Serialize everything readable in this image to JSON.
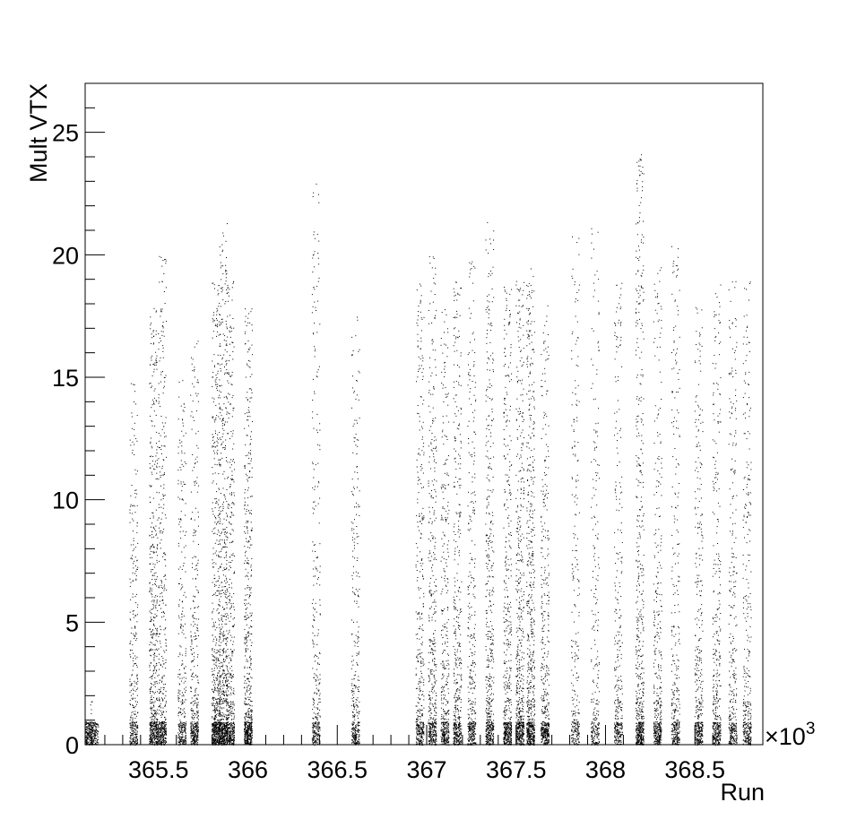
{
  "chart_data": {
    "type": "scatter",
    "title": "",
    "xlabel": "Run",
    "ylabel": "Mult VTX",
    "x_multiplier_label": "×10",
    "x_multiplier_exponent": "3",
    "xlim": [
      365.09,
      368.88
    ],
    "ylim": [
      0,
      27
    ],
    "x_ticks": [
      {
        "value": 365.5,
        "label": "365.5"
      },
      {
        "value": 366.0,
        "label": "366"
      },
      {
        "value": 366.5,
        "label": "366.5"
      },
      {
        "value": 367.0,
        "label": "367"
      },
      {
        "value": 367.5,
        "label": "367.5"
      },
      {
        "value": 368.0,
        "label": "368"
      },
      {
        "value": 368.5,
        "label": "368.5"
      }
    ],
    "y_ticks": [
      {
        "value": 0,
        "label": "0"
      },
      {
        "value": 5,
        "label": "5"
      },
      {
        "value": 10,
        "label": "10"
      },
      {
        "value": 15,
        "label": "15"
      },
      {
        "value": 20,
        "label": "20"
      },
      {
        "value": 25,
        "label": "25"
      }
    ],
    "grid": false,
    "marker_color": "#000000",
    "runs": [
      {
        "x": 365.11,
        "max": 1,
        "density": 0.3
      },
      {
        "x": 365.14,
        "max": 1,
        "density": 0.2
      },
      {
        "x": 365.36,
        "max": 14,
        "density": 0.5
      },
      {
        "x": 365.47,
        "max": 17,
        "density": 0.9
      },
      {
        "x": 365.52,
        "max": 19,
        "density": 0.7
      },
      {
        "x": 365.63,
        "max": 14,
        "density": 0.5
      },
      {
        "x": 365.7,
        "max": 16,
        "density": 0.6
      },
      {
        "x": 365.82,
        "max": 18,
        "density": 1.0
      },
      {
        "x": 365.86,
        "max": 20.5,
        "density": 1.0
      },
      {
        "x": 365.9,
        "max": 18,
        "density": 0.8
      },
      {
        "x": 366.0,
        "max": 17,
        "density": 0.9
      },
      {
        "x": 366.38,
        "max": 22,
        "density": 0.5
      },
      {
        "x": 366.6,
        "max": 17,
        "density": 0.5
      },
      {
        "x": 366.96,
        "max": 18,
        "density": 0.6
      },
      {
        "x": 367.03,
        "max": 19,
        "density": 0.7
      },
      {
        "x": 367.1,
        "max": 17,
        "density": 0.6
      },
      {
        "x": 367.17,
        "max": 18,
        "density": 0.7
      },
      {
        "x": 367.25,
        "max": 19,
        "density": 0.6
      },
      {
        "x": 367.35,
        "max": 20.5,
        "density": 0.8
      },
      {
        "x": 367.45,
        "max": 18,
        "density": 0.8
      },
      {
        "x": 367.52,
        "max": 18,
        "density": 0.9
      },
      {
        "x": 367.58,
        "max": 18.5,
        "density": 1.0
      },
      {
        "x": 367.66,
        "max": 17,
        "density": 0.7
      },
      {
        "x": 367.83,
        "max": 20,
        "density": 0.4
      },
      {
        "x": 367.94,
        "max": 20.5,
        "density": 0.4
      },
      {
        "x": 368.07,
        "max": 18,
        "density": 0.5
      },
      {
        "x": 368.19,
        "max": 23.5,
        "density": 0.9
      },
      {
        "x": 368.29,
        "max": 19,
        "density": 0.6
      },
      {
        "x": 368.39,
        "max": 19.5,
        "density": 0.5
      },
      {
        "x": 368.52,
        "max": 17,
        "density": 0.6
      },
      {
        "x": 368.62,
        "max": 18,
        "density": 0.6
      },
      {
        "x": 368.71,
        "max": 18,
        "density": 0.5
      },
      {
        "x": 368.79,
        "max": 18,
        "density": 0.5
      }
    ]
  }
}
